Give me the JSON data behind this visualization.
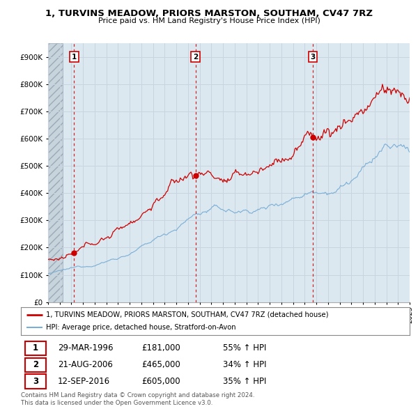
{
  "title1": "1, TURVINS MEADOW, PRIORS MARSTON, SOUTHAM, CV47 7RZ",
  "title2": "Price paid vs. HM Land Registry's House Price Index (HPI)",
  "red_label": "1, TURVINS MEADOW, PRIORS MARSTON, SOUTHAM, CV47 7RZ (detached house)",
  "blue_label": "HPI: Average price, detached house, Stratford-on-Avon",
  "purchases": [
    {
      "num": 1,
      "date": "29-MAR-1996",
      "price": 181000,
      "pct": "55%",
      "dir": "↑"
    },
    {
      "num": 2,
      "date": "21-AUG-2006",
      "price": 465000,
      "pct": "34%",
      "dir": "↑"
    },
    {
      "num": 3,
      "date": "12-SEP-2016",
      "price": 605000,
      "pct": "35%",
      "dir": "↑"
    }
  ],
  "purchase_years": [
    1996.23,
    2006.64,
    2016.71
  ],
  "purchase_prices": [
    181000,
    465000,
    605000
  ],
  "ylim": [
    0,
    950000
  ],
  "xlim_start": 1994,
  "xlim_end": 2025,
  "yticks": [
    0,
    100000,
    200000,
    300000,
    400000,
    500000,
    600000,
    700000,
    800000,
    900000
  ],
  "ytick_labels": [
    "£0",
    "£100K",
    "£200K",
    "£300K",
    "£400K",
    "£500K",
    "£600K",
    "£700K",
    "£800K",
    "£900K"
  ],
  "grid_color": "#c8d4e0",
  "bg_color": "#ffffff",
  "plot_bg": "#dce8f0",
  "red_color": "#cc0000",
  "blue_color": "#7aaed6",
  "hatch_end": 1995.25,
  "footer": "Contains HM Land Registry data © Crown copyright and database right 2024.\nThis data is licensed under the Open Government Licence v3.0."
}
